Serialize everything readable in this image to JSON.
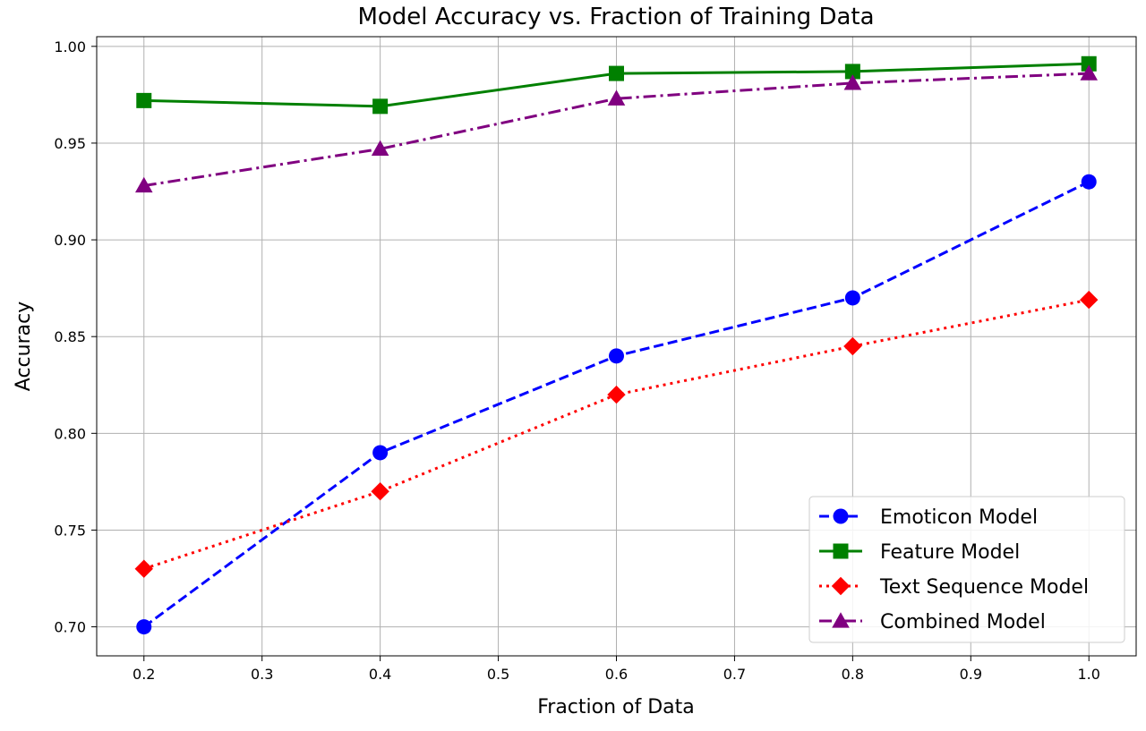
{
  "chart_data": {
    "type": "line",
    "title": "Model Accuracy vs. Fraction of Training Data",
    "xlabel": "Fraction of Data",
    "ylabel": "Accuracy",
    "xlim": [
      0.16,
      1.04
    ],
    "ylim": [
      0.685,
      1.005
    ],
    "grid": true,
    "legend_position": "lower-right",
    "x_ticks": [
      0.2,
      0.3,
      0.4,
      0.5,
      0.6,
      0.7,
      0.8,
      0.9,
      1.0
    ],
    "x_tick_labels": [
      "0.2",
      "0.3",
      "0.4",
      "0.5",
      "0.6",
      "0.7",
      "0.8",
      "0.9",
      "1.0"
    ],
    "y_ticks": [
      0.7,
      0.75,
      0.8,
      0.85,
      0.9,
      0.95,
      1.0
    ],
    "y_tick_labels": [
      "0.70",
      "0.75",
      "0.80",
      "0.85",
      "0.90",
      "0.95",
      "1.00"
    ],
    "x": [
      0.2,
      0.4,
      0.6,
      0.8,
      1.0
    ],
    "series": [
      {
        "name": "Emoticon Model",
        "values": [
          0.7,
          0.79,
          0.84,
          0.87,
          0.93
        ],
        "color": "#0000ff",
        "line_style": "dashed",
        "marker": "circle"
      },
      {
        "name": "Feature Model",
        "values": [
          0.972,
          0.969,
          0.986,
          0.987,
          0.991
        ],
        "color": "#008000",
        "line_style": "solid",
        "marker": "square"
      },
      {
        "name": "Text Sequence Model",
        "values": [
          0.73,
          0.77,
          0.82,
          0.845,
          0.869
        ],
        "color": "#ff0000",
        "line_style": "dotted",
        "marker": "diamond"
      },
      {
        "name": "Combined Model",
        "values": [
          0.928,
          0.947,
          0.973,
          0.981,
          0.986
        ],
        "color": "#800080",
        "line_style": "dashdot",
        "marker": "triangle"
      }
    ]
  }
}
